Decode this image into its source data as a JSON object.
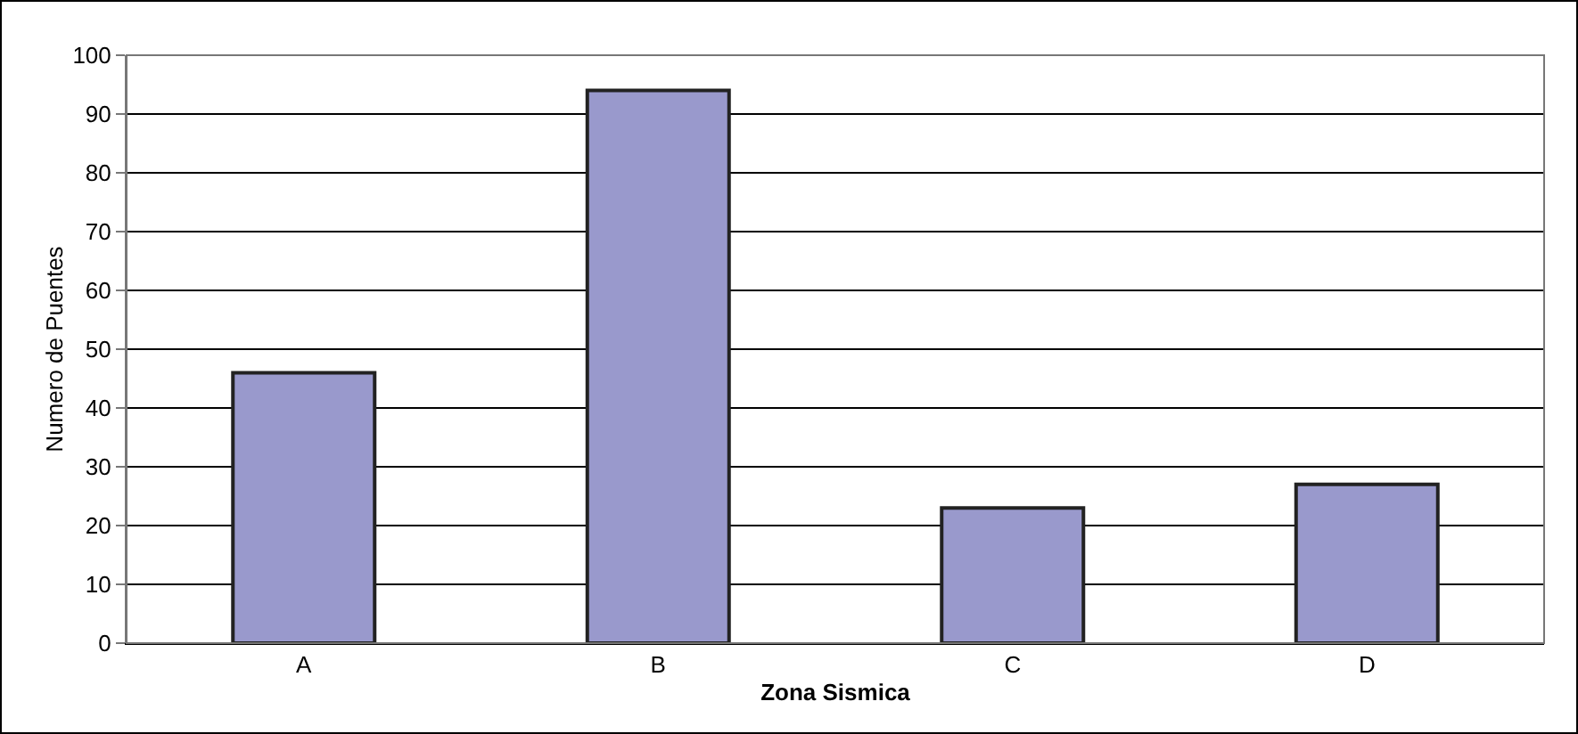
{
  "chart_data": {
    "type": "bar",
    "xlabel": "Zona Sismica",
    "ylabel": "Numero de Puentes",
    "categories": [
      "A",
      "B",
      "C",
      "D"
    ],
    "values": [
      46,
      94,
      23,
      27
    ],
    "color": "#9999cc",
    "ylim": [
      0,
      100
    ],
    "yticks": [
      0,
      10,
      20,
      30,
      40,
      50,
      60,
      70,
      80,
      90,
      100
    ],
    "grid": "y"
  }
}
